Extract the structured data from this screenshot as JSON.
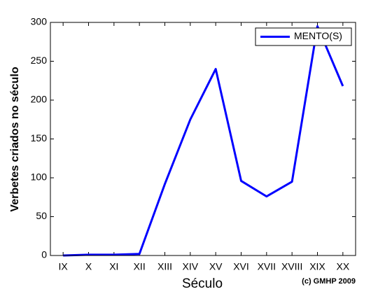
{
  "chart_data": {
    "type": "line",
    "x_label": "Século",
    "y_label": "Verbetes criados no século",
    "annotation": "(c) GMHP 2009",
    "categories": [
      "IX",
      "X",
      "XI",
      "XII",
      "XIII",
      "XIV",
      "XV",
      "XVI",
      "XVII",
      "XVIII",
      "XIX",
      "XX"
    ],
    "series": [
      {
        "name": "MENTO(S)",
        "color": "#0000ff",
        "values": [
          0,
          1,
          1,
          2,
          92,
          175,
          240,
          96,
          76,
          95,
          295,
          218
        ]
      }
    ],
    "ylim": [
      0,
      300
    ],
    "yticks": [
      0,
      50,
      100,
      150,
      200,
      250,
      300
    ],
    "legend": "upper right",
    "grid": false
  }
}
